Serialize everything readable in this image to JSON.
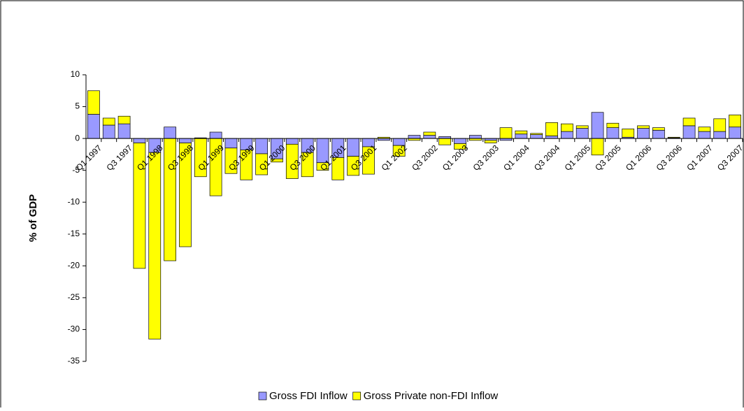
{
  "chart_data": {
    "type": "stacked-bar",
    "ylabel": "% of GDP",
    "categories": [
      "Q1 1997",
      null,
      "Q3 1997",
      null,
      "Q1 1998",
      null,
      "Q3 1998",
      null,
      "Q1 1999",
      null,
      "Q3 1999",
      null,
      "Q1 2000",
      null,
      "Q3 2000",
      null,
      "Q1 2001",
      null,
      "Q3 2001",
      null,
      "Q1 2002",
      null,
      "Q3 2002",
      null,
      "Q1 2003",
      null,
      "Q3 2003",
      null,
      "Q1 2004",
      null,
      "Q3 2004",
      null,
      "Q1 2005",
      null,
      "Q3 2005",
      null,
      "Q1 2006",
      null,
      "Q3 2006",
      null,
      "Q1 2007",
      null,
      "Q3 2007"
    ],
    "series": [
      {
        "name": "Gross FDI Inflow",
        "color": "#9999ff",
        "values": [
          3.8,
          2.1,
          2.3,
          -0.7,
          -2.2,
          1.8,
          -0.7,
          0.1,
          1.0,
          -1.5,
          -1.8,
          -2.4,
          -3.2,
          -0.9,
          -2.2,
          -3.8,
          -3.0,
          -2.8,
          -1.3,
          -0.3,
          -1.1,
          0.5,
          0.5,
          0.3,
          -0.8,
          0.5,
          -0.3,
          -0.3,
          0.7,
          0.6,
          0.4,
          1.1,
          1.6,
          4.1,
          1.7,
          0.2,
          1.6,
          1.3,
          0.1,
          2.0,
          1.1,
          1.1,
          1.8
        ]
      },
      {
        "name": "Gross Private non-FDI Inflow",
        "color": "#ffff00",
        "values": [
          3.7,
          1.1,
          1.2,
          -19.7,
          -29.3,
          -19.2,
          -16.3,
          -6.0,
          -9.0,
          -4.0,
          -4.7,
          -3.3,
          -0.5,
          -5.4,
          -3.8,
          -1.2,
          -3.5,
          -3.0,
          -4.3,
          0.2,
          -1.7,
          -0.3,
          0.5,
          -1.0,
          -0.9,
          -0.3,
          -0.4,
          1.7,
          0.5,
          0.2,
          2.1,
          1.2,
          0.4,
          -2.6,
          0.7,
          1.3,
          0.4,
          0.4,
          0.1,
          1.2,
          0.7,
          2.0,
          1.9
        ]
      }
    ],
    "ylim": [
      -35,
      10
    ],
    "yticks": [
      10,
      5,
      0,
      -5,
      -10,
      -15,
      -20,
      -25,
      -30,
      -35
    ],
    "legend": "bottom"
  }
}
